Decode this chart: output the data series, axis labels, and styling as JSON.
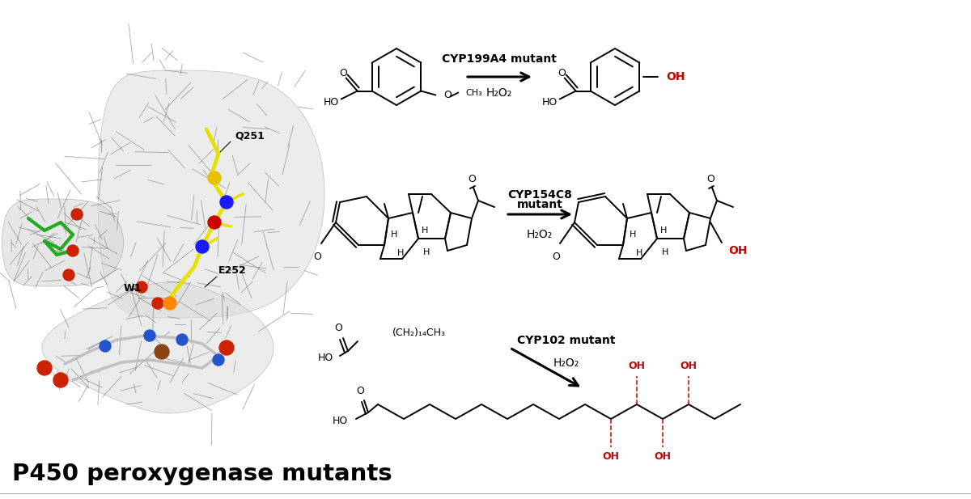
{
  "background_color": "#ffffff",
  "title_text": "P450 peroxygenase mutants",
  "title_fontsize": 21,
  "title_bold": true,
  "red_color": "#cc0000",
  "black_color": "#000000",
  "reaction1_label": "CYP199A4 mutant",
  "reaction1_sub": "H₂O₂",
  "reaction2_label_line1": "CYP154C8",
  "reaction2_label_line2": "mutant",
  "reaction2_sub": "H₂O₂",
  "reaction3_label": "CYP102 mutant",
  "reaction3_sub": "H₂O₂",
  "protein_labels": [
    "Q251",
    "E252",
    "W1"
  ],
  "lw": 1.4
}
